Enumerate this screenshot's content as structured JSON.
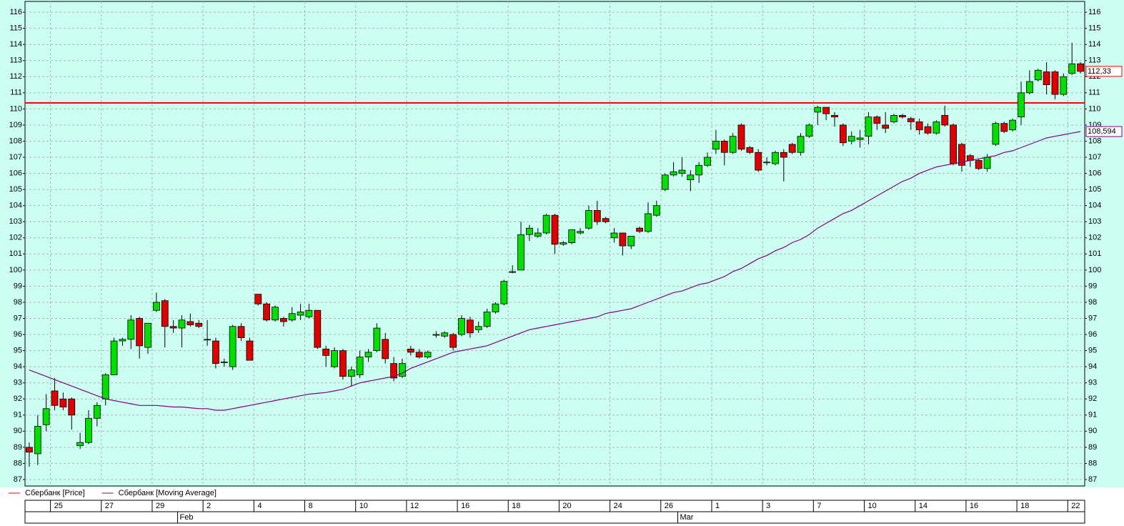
{
  "chart_data": {
    "type": "candlestick",
    "categories": [
      null,
      null,
      null,
      "25",
      null,
      null,
      null,
      null,
      null,
      "27",
      null,
      null,
      null,
      null,
      null,
      "29",
      null,
      null,
      null,
      null,
      null,
      "2",
      null,
      null,
      null,
      null,
      null,
      "4",
      null,
      null,
      null,
      null,
      null,
      "8",
      null,
      null,
      null,
      null,
      null,
      "10",
      null,
      null,
      null,
      null,
      null,
      "12",
      null,
      null,
      null,
      null,
      null,
      "16",
      null,
      null,
      null,
      null,
      null,
      "18",
      null,
      null,
      null,
      null,
      null,
      "20",
      null,
      null,
      null,
      null,
      null,
      "24",
      null,
      null,
      null,
      null,
      null,
      "26",
      null,
      null,
      null,
      null,
      null,
      "1",
      null,
      null,
      null,
      null,
      null,
      "3",
      null,
      null,
      null,
      null,
      null,
      "7",
      null,
      null,
      null,
      null,
      null,
      "10",
      null,
      null,
      null,
      null,
      null,
      "14",
      null,
      null,
      null,
      null,
      null,
      "16",
      null,
      null,
      null,
      null,
      null,
      "18",
      null,
      null,
      null,
      null,
      null,
      "22",
      null
    ],
    "months": [
      null,
      null,
      null,
      null,
      null,
      null,
      null,
      null,
      null,
      null,
      null,
      null,
      null,
      null,
      null,
      null,
      null,
      null,
      "Feb",
      null,
      null,
      null,
      null,
      null,
      null,
      null,
      null,
      null,
      null,
      null,
      null,
      null,
      null,
      null,
      null,
      null,
      null,
      null,
      null,
      null,
      null,
      null,
      null,
      null,
      null,
      null,
      null,
      null,
      null,
      null,
      null,
      null,
      null,
      null,
      null,
      null,
      null,
      null,
      null,
      null,
      null,
      null,
      null,
      null,
      null,
      null,
      null,
      null,
      null,
      null,
      null,
      null,
      null,
      null,
      null,
      null,
      null,
      "Mar",
      null,
      null,
      null,
      null,
      null,
      null,
      null,
      null,
      null,
      null,
      null,
      null,
      null,
      null,
      null,
      null,
      null,
      null,
      null,
      null,
      null,
      null,
      null,
      null,
      null,
      null,
      null,
      null,
      null,
      null,
      null,
      null,
      null,
      null,
      null,
      null,
      null,
      null,
      null,
      null,
      null,
      null,
      null
    ],
    "series": [
      {
        "name": "Сбербанк [Price]",
        "color": "#ff0000",
        "up_color": "#00e000",
        "down_color": "#e00000",
        "last_label": "112,33",
        "open": [
          89.0,
          88.6,
          90.4,
          92.5,
          92.0,
          92.0,
          89.1,
          89.3,
          90.8,
          92.0,
          93.5,
          95.6,
          95.7,
          97.0,
          95.2,
          97.5,
          98.1,
          96.5,
          96.4,
          96.8,
          96.7,
          95.7,
          95.6,
          94.3,
          94.0,
          96.5,
          95.6,
          98.5,
          97.9,
          96.9,
          97.0,
          96.9,
          97.2,
          97.1,
          97.5,
          95.1,
          94.0,
          95.0,
          93.4,
          93.5,
          94.6,
          95.0,
          95.7,
          94.2,
          93.4,
          95.1,
          94.9,
          94.6,
          96.0,
          95.9,
          96.0,
          96.0,
          96.9,
          96.3,
          96.5,
          97.4,
          97.9,
          99.9,
          100.0,
          102.2,
          102.1,
          102.3,
          103.4,
          101.6,
          101.7,
          102.3,
          102.6,
          103.7,
          103.2,
          102.0,
          102.3,
          101.5,
          102.6,
          102.4,
          103.4,
          105.0,
          105.9,
          106.0,
          105.6,
          105.9,
          106.5,
          107.5,
          108.0,
          107.3,
          109.0,
          107.6,
          107.3,
          106.7,
          106.6,
          107.3,
          107.8,
          107.3,
          108.3,
          109.8,
          110.1,
          109.6,
          109.0,
          108.0,
          108.1,
          108.3,
          109.5,
          109.0,
          109.2,
          109.6,
          109.4,
          109.2,
          108.9,
          108.5,
          109.6,
          109.0,
          107.8,
          107.1,
          106.8,
          106.3,
          107.8,
          109.1,
          108.7,
          109.5,
          111.0,
          111.8,
          112.3,
          112.3,
          110.9,
          112.2,
          112.8
        ],
        "high": [
          89.3,
          91.0,
          92.3,
          93.3,
          92.4,
          92.1,
          89.9,
          91.3,
          91.8,
          93.6,
          95.8,
          95.8,
          97.2,
          97.1,
          96.7,
          98.6,
          98.2,
          96.9,
          97.2,
          97.3,
          96.9,
          96.9,
          95.8,
          94.5,
          96.6,
          96.7,
          95.8,
          98.5,
          98.0,
          97.8,
          97.1,
          97.7,
          97.9,
          97.9,
          97.5,
          95.3,
          95.2,
          95.1,
          94.0,
          95.0,
          95.1,
          96.7,
          96.1,
          94.6,
          94.5,
          95.3,
          95.1,
          95.0,
          96.2,
          96.2,
          96.1,
          97.2,
          97.1,
          96.8,
          97.6,
          98.0,
          99.4,
          100.3,
          103.0,
          102.8,
          102.6,
          103.5,
          103.5,
          101.8,
          102.5,
          102.6,
          104.0,
          104.3,
          103.3,
          102.6,
          102.3,
          102.1,
          102.7,
          104.2,
          104.3,
          106.0,
          106.7,
          107.0,
          106.2,
          106.7,
          107.3,
          108.7,
          108.1,
          108.5,
          109.1,
          107.7,
          107.5,
          107.0,
          107.4,
          107.5,
          107.9,
          108.5,
          109.1,
          110.2,
          110.1,
          109.8,
          109.1,
          108.6,
          108.7,
          109.8,
          109.6,
          109.8,
          109.7,
          109.7,
          109.5,
          109.4,
          109.1,
          109.3,
          110.2,
          109.1,
          107.9,
          107.2,
          106.9,
          107.2,
          109.2,
          109.2,
          109.4,
          111.7,
          112.4,
          112.5,
          112.9,
          112.4,
          112.2,
          114.1,
          112.9
        ],
        "low": [
          87.8,
          87.9,
          90.0,
          91.3,
          91.3,
          90.1,
          88.9,
          89.2,
          90.3,
          91.6,
          93.5,
          95.3,
          95.1,
          94.5,
          94.8,
          97.4,
          95.2,
          96.1,
          95.2,
          96.5,
          96.4,
          95.3,
          93.9,
          94.0,
          93.8,
          95.6,
          94.4,
          97.8,
          96.8,
          96.8,
          96.5,
          96.8,
          96.9,
          97.0,
          95.1,
          94.0,
          93.9,
          93.2,
          92.8,
          93.3,
          94.3,
          94.9,
          94.2,
          93.1,
          93.3,
          94.7,
          94.5,
          94.5,
          95.8,
          95.8,
          95.0,
          95.9,
          95.8,
          96.1,
          96.4,
          97.3,
          97.8,
          99.8,
          100.0,
          101.8,
          102.0,
          102.2,
          101.0,
          101.5,
          101.6,
          102.2,
          102.5,
          102.8,
          102.9,
          101.7,
          100.9,
          101.3,
          102.3,
          102.3,
          103.3,
          104.9,
          105.8,
          105.8,
          104.9,
          105.4,
          106.4,
          107.2,
          106.5,
          107.2,
          107.4,
          107.2,
          106.1,
          106.5,
          106.5,
          105.5,
          107.2,
          107.1,
          108.2,
          109.0,
          109.3,
          108.9,
          107.7,
          107.8,
          107.6,
          107.8,
          108.7,
          108.5,
          109.1,
          109.4,
          108.7,
          108.4,
          108.4,
          108.4,
          108.9,
          106.5,
          106.1,
          106.4,
          106.2,
          106.1,
          107.7,
          108.5,
          108.6,
          109.0,
          110.9,
          111.7,
          110.9,
          110.6,
          110.8,
          112.1,
          112.2
        ],
        "close": [
          88.7,
          90.3,
          91.4,
          91.6,
          91.5,
          91.0,
          89.3,
          90.8,
          91.6,
          93.5,
          95.6,
          95.7,
          96.9,
          95.3,
          96.7,
          98.0,
          96.5,
          96.4,
          96.9,
          96.6,
          96.5,
          95.7,
          94.2,
          94.3,
          96.5,
          95.8,
          94.4,
          97.9,
          96.9,
          97.7,
          96.8,
          97.3,
          97.4,
          97.5,
          95.2,
          94.7,
          95.0,
          93.4,
          93.8,
          94.6,
          94.9,
          96.4,
          94.5,
          93.3,
          94.2,
          94.9,
          94.6,
          94.9,
          96.0,
          96.1,
          95.2,
          97.0,
          96.1,
          96.5,
          97.4,
          97.9,
          99.3,
          99.9,
          102.2,
          102.6,
          102.3,
          103.4,
          101.6,
          101.7,
          102.5,
          102.4,
          103.7,
          103.0,
          103.0,
          102.3,
          101.5,
          102.1,
          102.4,
          103.5,
          104.0,
          105.9,
          106.1,
          106.2,
          105.9,
          106.5,
          107.0,
          108.0,
          107.3,
          108.3,
          107.5,
          107.3,
          106.2,
          106.7,
          107.3,
          107.0,
          107.3,
          108.3,
          109.0,
          110.1,
          109.7,
          109.5,
          107.9,
          108.3,
          108.2,
          109.5,
          109.1,
          108.8,
          109.6,
          109.5,
          109.2,
          108.7,
          108.5,
          109.2,
          109.0,
          106.6,
          106.5,
          106.8,
          106.3,
          107.0,
          109.1,
          108.6,
          109.3,
          111.0,
          111.7,
          112.4,
          111.5,
          110.9,
          112.0,
          112.8,
          112.33
        ]
      },
      {
        "name": "Сбербанк [Moving Average]",
        "type": "line",
        "color": "#800080",
        "last_label": "108,594",
        "values": [
          93.8,
          93.6,
          93.4,
          93.2,
          93.0,
          92.8,
          92.6,
          92.4,
          92.2,
          92.0,
          91.9,
          91.8,
          91.7,
          91.6,
          91.6,
          91.6,
          91.55,
          91.5,
          91.5,
          91.45,
          91.4,
          91.4,
          91.3,
          91.3,
          91.4,
          91.5,
          91.6,
          91.7,
          91.8,
          91.9,
          92.0,
          92.1,
          92.2,
          92.3,
          92.35,
          92.4,
          92.5,
          92.6,
          92.8,
          93.0,
          93.1,
          93.2,
          93.3,
          93.4,
          93.6,
          93.9,
          94.1,
          94.3,
          94.5,
          94.7,
          94.9,
          95.0,
          95.1,
          95.2,
          95.3,
          95.5,
          95.7,
          95.9,
          96.1,
          96.3,
          96.4,
          96.5,
          96.6,
          96.7,
          96.8,
          96.9,
          97.0,
          97.1,
          97.3,
          97.4,
          97.5,
          97.6,
          97.8,
          98.0,
          98.2,
          98.4,
          98.6,
          98.7,
          98.9,
          99.1,
          99.2,
          99.4,
          99.6,
          99.9,
          100.1,
          100.4,
          100.7,
          100.9,
          101.2,
          101.4,
          101.7,
          101.9,
          102.2,
          102.6,
          102.9,
          103.2,
          103.5,
          103.7,
          104.0,
          104.3,
          104.6,
          104.9,
          105.2,
          105.5,
          105.7,
          106.0,
          106.2,
          106.4,
          106.5,
          106.6,
          106.7,
          106.8,
          106.9,
          107.0,
          107.1,
          107.3,
          107.4,
          107.6,
          107.8,
          108.0,
          108.2,
          108.3,
          108.4,
          108.5,
          108.594
        ]
      }
    ],
    "reference_line": {
      "value": 110.37,
      "color": "#ff0000"
    },
    "ylim": [
      86.6,
      116.67
    ],
    "yticks": [
      87,
      88,
      89,
      90,
      91,
      92,
      93,
      94,
      95,
      96,
      97,
      98,
      99,
      100,
      101,
      102,
      103,
      104,
      105,
      106,
      107,
      108,
      109,
      110,
      111,
      112,
      113,
      114,
      115,
      116
    ],
    "grid": true,
    "background": "#ccfff2"
  }
}
